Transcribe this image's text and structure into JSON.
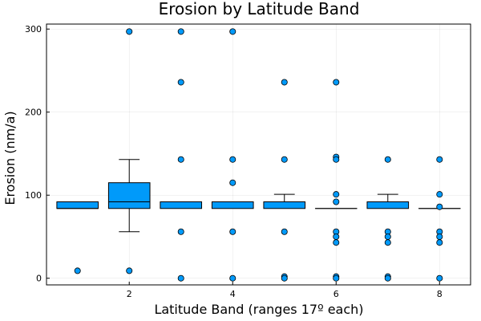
{
  "chart_data": {
    "type": "boxplot",
    "title": "Erosion by Latitude Band",
    "xlabel": "Latitude Band (ranges 17º each)",
    "ylabel": "Erosion (nm/a)",
    "xlim": [
      0.4,
      8.6
    ],
    "ylim": [
      -8,
      306
    ],
    "xticks": [
      2,
      4,
      6,
      8
    ],
    "yticks": [
      0,
      100,
      200,
      300
    ],
    "grid": true,
    "legend": "none",
    "box_color": "#009AFA",
    "bands": [
      {
        "x": 1,
        "whisker_low": 84,
        "q1": 84,
        "median": 84,
        "q3": 92,
        "whisker_high": 92,
        "outliers": [
          9
        ]
      },
      {
        "x": 2,
        "whisker_low": 56,
        "q1": 84,
        "median": 92,
        "q3": 115,
        "whisker_high": 143,
        "outliers": [
          297,
          9
        ]
      },
      {
        "x": 3,
        "whisker_low": 84,
        "q1": 84,
        "median": 92,
        "q3": 92,
        "whisker_high": 92,
        "outliers": [
          297,
          236,
          143,
          56,
          0
        ]
      },
      {
        "x": 4,
        "whisker_low": 84,
        "q1": 84,
        "median": 92,
        "q3": 92,
        "whisker_high": 92,
        "outliers": [
          297,
          143,
          115,
          56,
          0
        ]
      },
      {
        "x": 5,
        "whisker_low": 84,
        "q1": 84,
        "median": 92,
        "q3": 92,
        "whisker_high": 101,
        "outliers": [
          236,
          143,
          56,
          2,
          0
        ]
      },
      {
        "x": 6,
        "whisker_low": 84,
        "q1": 84,
        "median": 84,
        "q3": 84,
        "whisker_high": 84,
        "outliers": [
          236,
          146,
          143,
          101,
          92,
          56,
          50,
          43,
          2,
          0
        ]
      },
      {
        "x": 7,
        "whisker_low": 84,
        "q1": 84,
        "median": 92,
        "q3": 92,
        "whisker_high": 101,
        "outliers": [
          143,
          56,
          50,
          43,
          2,
          0
        ]
      },
      {
        "x": 8,
        "whisker_low": 84,
        "q1": 84,
        "median": 84,
        "q3": 84,
        "whisker_high": 84,
        "outliers": [
          143,
          101,
          86,
          56,
          50,
          43,
          0
        ]
      }
    ]
  }
}
